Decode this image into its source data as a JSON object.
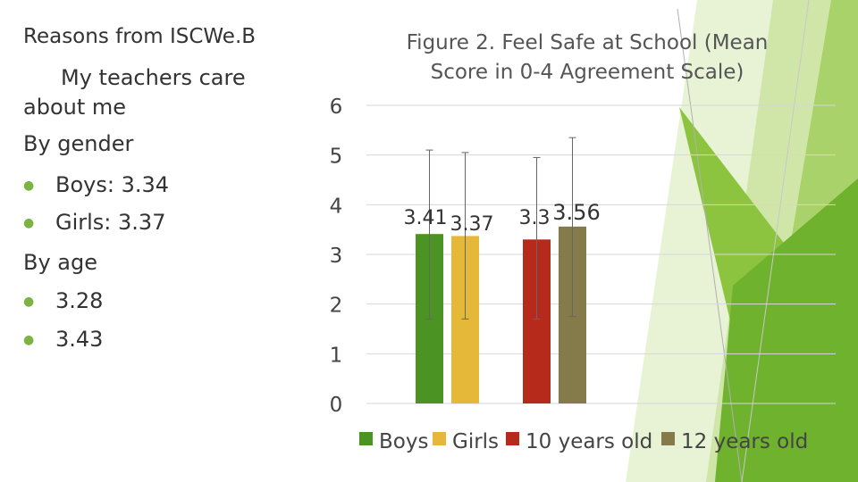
{
  "left_panel": {
    "title": "Reasons from ISCWe.B",
    "subtitle": "My teachers care about me",
    "sections": [
      {
        "heading": "By gender",
        "items": [
          "Boys: 3.34",
          "Girls: 3.37"
        ]
      },
      {
        "heading": "By age",
        "items": [
          "3.28",
          "3.43"
        ]
      }
    ]
  },
  "colors": {
    "accent_green": "#7cb342",
    "bullet": "#7cb342"
  },
  "chart_data": {
    "type": "bar",
    "title": "Figure 2. Feel Safe at School (Mean Score in 0-4 Agreement Scale)",
    "title_lines": [
      "Figure 2. Feel Safe at School (Mean",
      "Score in 0-4 Agreement Scale)"
    ],
    "xlabel": "",
    "ylabel": "",
    "ylim": [
      0,
      6
    ],
    "yticks": [
      "0",
      "1",
      "2",
      "3",
      "4",
      "5",
      "6"
    ],
    "grid": true,
    "legend_position": "bottom",
    "series": [
      {
        "name": "Boys",
        "value": 3.41,
        "label": "3.41",
        "error": [
          1.7,
          5.1
        ],
        "color": "#4b9424"
      },
      {
        "name": "Girls",
        "value": 3.37,
        "label": "3.37",
        "error": [
          1.7,
          5.05
        ],
        "color": "#e5b83a"
      },
      {
        "name": "10 years old",
        "value": 3.3,
        "label": "3.3",
        "error": [
          1.7,
          4.95
        ],
        "color": "#b52a1a"
      },
      {
        "name": "12 years old",
        "value": 3.56,
        "label": "3.56",
        "error": [
          1.75,
          5.35
        ],
        "color": "#857a4a"
      }
    ]
  }
}
